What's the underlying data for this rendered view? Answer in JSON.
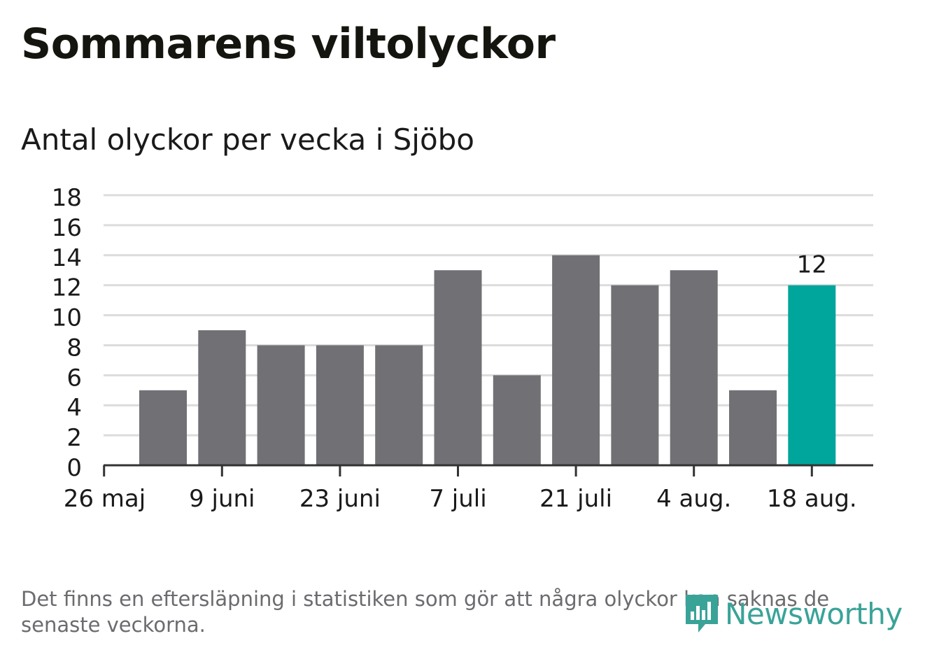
{
  "title": "Sommarens viltolyckor",
  "subtitle": "Antal olyckor per vecka i Sjöbo",
  "footnote": "Det finns en eftersläpning i statistiken som gör att några olyckor kan saknas de senaste veckorna.",
  "brand": {
    "name": "Newsworthy"
  },
  "colors": {
    "bar": "#707075",
    "highlight": "#00a59b",
    "grid": "#dcdcdc",
    "axis": "#333333",
    "brand": "#3aa398"
  },
  "chart_data": {
    "type": "bar",
    "categories": [
      "2 juni",
      "9 juni",
      "16 juni",
      "23 juni",
      "30 juni",
      "7 juli",
      "14 juli",
      "21 juli",
      "28 juli",
      "4 aug.",
      "11 aug.",
      "18 aug."
    ],
    "values": [
      5,
      9,
      8,
      8,
      8,
      13,
      6,
      14,
      12,
      13,
      5,
      12
    ],
    "highlight_index": 11,
    "data_labels": [
      {
        "index": 11,
        "text": "12"
      }
    ],
    "xticks": [
      "26 maj",
      "9 juni",
      "23 juni",
      "7 juli",
      "21 juli",
      "4 aug.",
      "18 aug."
    ],
    "yticks": [
      "0",
      "2",
      "4",
      "6",
      "8",
      "10",
      "12",
      "14",
      "16",
      "18"
    ],
    "ylim": [
      0,
      18
    ],
    "grid": true,
    "xlabel": "",
    "ylabel": ""
  }
}
